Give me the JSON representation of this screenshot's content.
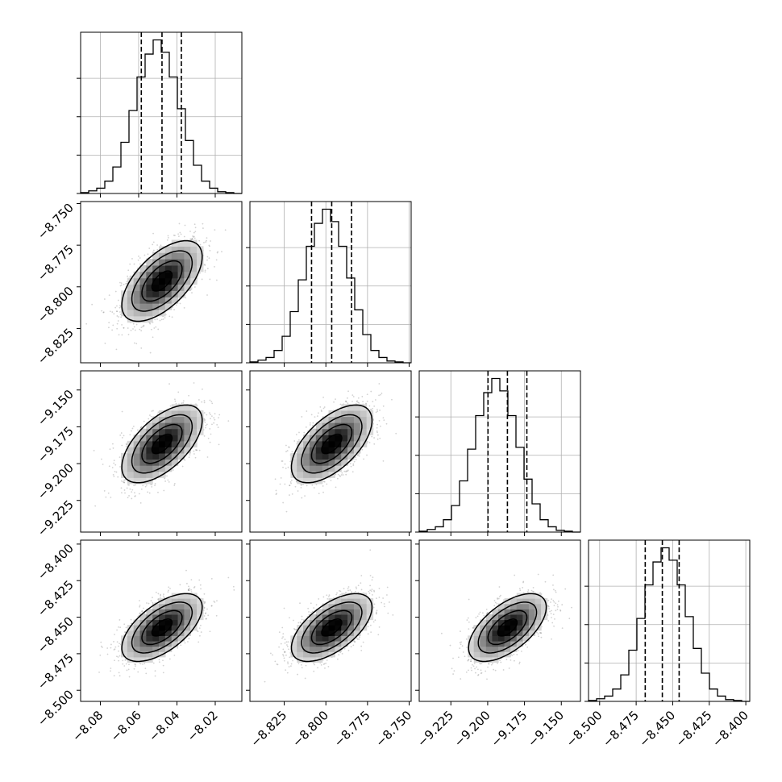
{
  "chart_data": {
    "type": "corner",
    "grid": true,
    "colors": {
      "line": "#000000",
      "grid": "#b0b0b0",
      "scatter": "#7f7f7f",
      "axes_face": "#ffffff"
    },
    "params": [
      {
        "range": [
          -8.0903,
          -8.0061
        ],
        "ticks": [
          -8.08,
          -8.06,
          -8.04,
          -8.02
        ],
        "tick_labels": [
          "−8.08",
          "−8.06",
          "−8.04",
          "−8.02"
        ],
        "quantiles": [
          -8.0586,
          -8.0478,
          -8.0377
        ],
        "mean": -8.0478,
        "sd": 0.0105,
        "hist_counts": [
          0.5,
          1.5,
          3,
          7,
          15,
          29,
          47,
          66,
          79,
          87,
          80,
          66,
          48,
          30,
          16,
          7,
          3,
          1,
          0.5,
          0
        ]
      },
      {
        "range": [
          -8.8456,
          -8.7488
        ],
        "ticks": [
          -8.825,
          -8.8,
          -8.775,
          -8.75
        ],
        "tick_labels": [
          "−8.825",
          "−8.800",
          "−8.775",
          "−8.750"
        ],
        "quantiles": [
          -8.8086,
          -8.7965,
          -8.7846
        ],
        "mean": -8.7965,
        "sd": 0.0121,
        "hist_counts": [
          0.5,
          1.5,
          3,
          7,
          15,
          29,
          47,
          66,
          79,
          87,
          80,
          66,
          48,
          30,
          16,
          7,
          3,
          1,
          0.5,
          0
        ]
      },
      {
        "range": [
          -9.2465,
          -9.137
        ],
        "ticks": [
          -9.225,
          -9.2,
          -9.175,
          -9.15
        ],
        "tick_labels": [
          "−9.225",
          "−9.200",
          "−9.175",
          "−9.150"
        ],
        "quantiles": [
          -9.1998,
          -9.1866,
          -9.1734
        ],
        "mean": -9.1866,
        "sd": 0.0132,
        "hist_counts": [
          0.5,
          1.5,
          3,
          7,
          15,
          29,
          47,
          66,
          79,
          87,
          80,
          66,
          48,
          30,
          16,
          7,
          3,
          1,
          0.5,
          0
        ]
      },
      {
        "range": [
          -8.5076,
          -8.3973
        ],
        "ticks": [
          -8.5,
          -8.475,
          -8.45,
          -8.425,
          -8.4
        ],
        "tick_labels": [
          "−8.500",
          "−8.475",
          "−8.450",
          "−8.425",
          "−8.400"
        ],
        "quantiles": [
          -8.4688,
          -8.4571,
          -8.4456
        ],
        "mean": -8.4571,
        "sd": 0.0116,
        "hist_counts": [
          0.5,
          1.5,
          3,
          7,
          15,
          29,
          47,
          66,
          79,
          87,
          80,
          66,
          48,
          30,
          16,
          7,
          3,
          1,
          0.5,
          0
        ]
      }
    ],
    "correlation": 0.6,
    "n_scatter_points": 1400
  }
}
